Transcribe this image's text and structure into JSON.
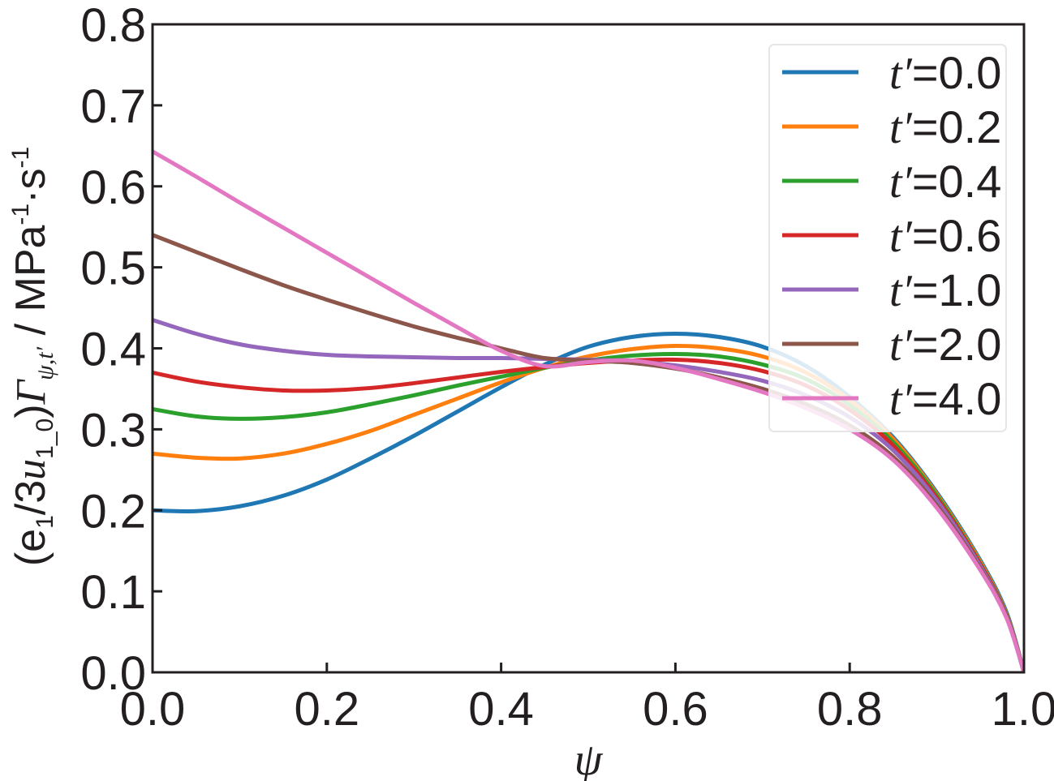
{
  "chart_data": {
    "type": "line",
    "title": "",
    "xlabel": "ψ",
    "ylabel": {
      "prefix": "(e",
      "sub1": "1",
      "mid": "/3",
      "u": "u",
      "sub2": "1_0",
      "close": ")",
      "gamma": "Γ",
      "sub3": "ψ,t′",
      "unit": " / MPa",
      "sup1": "-1",
      "dot": "·s",
      "sup2": "-1"
    },
    "xlim": [
      0.0,
      1.0
    ],
    "ylim": [
      0.0,
      0.8
    ],
    "xticks": [
      "0.0",
      "0.2",
      "0.4",
      "0.6",
      "0.8",
      "1.0"
    ],
    "yticks": [
      "0.0",
      "0.1",
      "0.2",
      "0.3",
      "0.4",
      "0.5",
      "0.6",
      "0.7",
      "0.8"
    ],
    "grid": false,
    "legend_position": "top-right",
    "x": [
      0.0,
      0.05,
      0.1,
      0.15,
      0.2,
      0.25,
      0.3,
      0.35,
      0.4,
      0.45,
      0.5,
      0.55,
      0.6,
      0.65,
      0.7,
      0.75,
      0.8,
      0.85,
      0.9,
      0.95,
      0.98,
      1.0
    ],
    "series": [
      {
        "name": "t′=0.0",
        "color": "#1f77b4",
        "values": [
          0.2,
          0.199,
          0.205,
          0.218,
          0.238,
          0.264,
          0.292,
          0.322,
          0.352,
          0.38,
          0.402,
          0.414,
          0.418,
          0.414,
          0.402,
          0.378,
          0.34,
          0.29,
          0.222,
          0.138,
          0.074,
          0.0
        ]
      },
      {
        "name": "t′=0.2",
        "color": "#ff7f0e",
        "values": [
          0.27,
          0.265,
          0.264,
          0.27,
          0.282,
          0.298,
          0.318,
          0.338,
          0.358,
          0.376,
          0.39,
          0.399,
          0.403,
          0.4,
          0.39,
          0.37,
          0.336,
          0.288,
          0.22,
          0.136,
          0.072,
          0.0
        ]
      },
      {
        "name": "t′=0.4",
        "color": "#2ca02c",
        "values": [
          0.325,
          0.316,
          0.313,
          0.315,
          0.321,
          0.331,
          0.342,
          0.354,
          0.365,
          0.376,
          0.385,
          0.391,
          0.393,
          0.39,
          0.38,
          0.362,
          0.33,
          0.284,
          0.218,
          0.134,
          0.071,
          0.0
        ]
      },
      {
        "name": "t′=0.6",
        "color": "#d62728",
        "values": [
          0.37,
          0.359,
          0.352,
          0.348,
          0.348,
          0.351,
          0.357,
          0.364,
          0.371,
          0.377,
          0.382,
          0.385,
          0.386,
          0.382,
          0.372,
          0.354,
          0.324,
          0.28,
          0.215,
          0.133,
          0.07,
          0.0
        ]
      },
      {
        "name": "t′=1.0",
        "color": "#9467bd",
        "values": [
          0.435,
          0.418,
          0.405,
          0.397,
          0.392,
          0.39,
          0.389,
          0.388,
          0.388,
          0.387,
          0.386,
          0.384,
          0.379,
          0.371,
          0.36,
          0.342,
          0.315,
          0.274,
          0.212,
          0.131,
          0.069,
          0.0
        ]
      },
      {
        "name": "t′=2.0",
        "color": "#8c564b",
        "values": [
          0.54,
          0.519,
          0.498,
          0.478,
          0.46,
          0.443,
          0.427,
          0.413,
          0.4,
          0.388,
          0.385,
          0.382,
          0.375,
          0.364,
          0.35,
          0.331,
          0.305,
          0.266,
          0.206,
          0.128,
          0.068,
          0.0
        ]
      },
      {
        "name": "t′=4.0",
        "color": "#e377c2",
        "values": [
          0.643,
          0.612,
          0.58,
          0.549,
          0.518,
          0.487,
          0.456,
          0.426,
          0.397,
          0.378,
          0.383,
          0.385,
          0.376,
          0.362,
          0.346,
          0.326,
          0.3,
          0.262,
          0.203,
          0.126,
          0.067,
          0.0
        ]
      }
    ]
  }
}
